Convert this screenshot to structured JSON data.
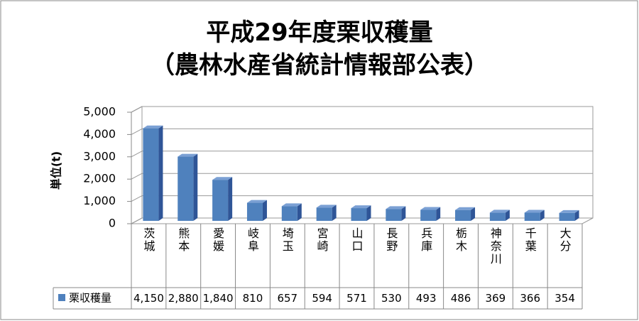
{
  "chart_data": {
    "type": "bar",
    "title": "平成29年度栗収穫量",
    "subtitle": "（農林水産省統計情報部公表）",
    "y_label": "単位(t)",
    "categories": [
      "茨城",
      "熊本",
      "愛媛",
      "岐阜",
      "埼玉",
      "宮崎",
      "山口",
      "長野",
      "兵庫",
      "栃木",
      "神奈川",
      "千葉",
      "大分"
    ],
    "series": [
      {
        "name": "栗収穫量",
        "color": "#4f81bd",
        "values": [
          4150,
          2880,
          1840,
          810,
          657,
          594,
          571,
          530,
          493,
          486,
          369,
          366,
          354
        ],
        "value_labels": [
          "4,150",
          "2,880",
          "1,840",
          "810",
          "657",
          "594",
          "571",
          "530",
          "493",
          "486",
          "369",
          "366",
          "354"
        ]
      }
    ],
    "ylim": [
      0,
      5000
    ],
    "yticks": [
      0,
      {
        "value": 1000,
        "label": "1,000"
      },
      {
        "value": 2000,
        "label": "2,000"
      },
      {
        "value": 3000,
        "label": "3,000"
      },
      {
        "value": 4000,
        "label": "4,000"
      },
      {
        "value": 5000,
        "label": "5,000"
      }
    ],
    "grid": true
  }
}
